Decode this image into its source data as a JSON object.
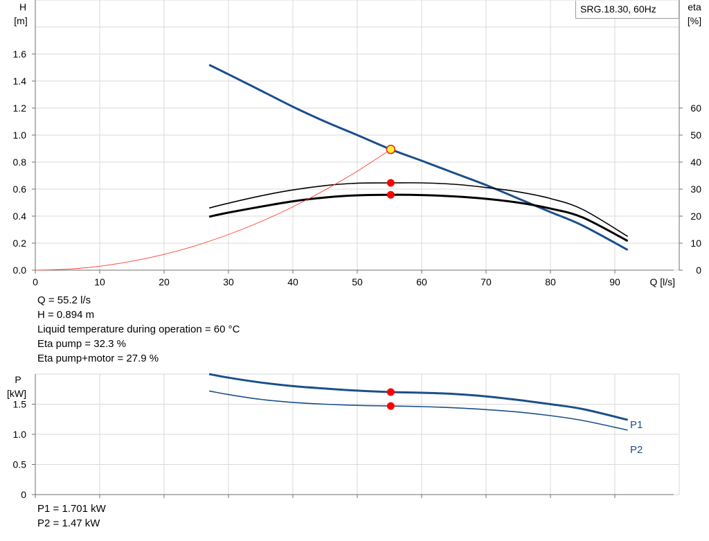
{
  "chart_data": [
    {
      "type": "line",
      "title": "SRG.18.30, 60Hz",
      "xlabel": "Q [l/s]",
      "ylabel_left": {
        "symbol": "H",
        "unit": "[m]"
      },
      "ylabel_right": {
        "symbol": "eta",
        "unit": "[%]"
      },
      "xlim": [
        0,
        100
      ],
      "ylim_left": [
        0,
        2.0
      ],
      "ylim_right": [
        0,
        100
      ],
      "x_ticks": [
        "0",
        "10",
        "20",
        "30",
        "40",
        "50",
        "60",
        "70",
        "80",
        "90"
      ],
      "y_ticks_left": [
        "0.0",
        "0.2",
        "0.4",
        "0.6",
        "0.8",
        "1.0",
        "1.2",
        "1.4",
        "1.6"
      ],
      "y_ticks_right": [
        "0",
        "10",
        "20",
        "30",
        "40",
        "50",
        "60"
      ],
      "grid": true,
      "series": [
        {
          "axis": "left",
          "color": "#1a4f8b",
          "x": [
            27,
            30,
            35,
            40,
            45,
            50,
            55.2,
            60,
            65,
            70,
            75,
            80,
            85,
            92
          ],
          "y": [
            1.52,
            1.45,
            1.33,
            1.21,
            1.1,
            1.0,
            0.894,
            0.81,
            0.72,
            0.63,
            0.53,
            0.43,
            0.33,
            0.15
          ]
        },
        {
          "axis": "right",
          "color": "#000000",
          "x": [
            27,
            30,
            35,
            40,
            45,
            50,
            55.2,
            60,
            65,
            70,
            75,
            80,
            85,
            92
          ],
          "y": [
            23.0,
            24.8,
            27.5,
            29.7,
            31.3,
            32.2,
            32.3,
            32.3,
            31.8,
            30.6,
            29.0,
            26.5,
            22.5,
            12.5
          ]
        },
        {
          "axis": "right",
          "color": "#000000",
          "x": [
            27,
            30,
            35,
            40,
            45,
            50,
            55.2,
            60,
            65,
            70,
            75,
            80,
            85,
            92
          ],
          "y": [
            19.8,
            21.3,
            23.5,
            25.5,
            26.9,
            27.7,
            27.9,
            27.8,
            27.3,
            26.4,
            25.0,
            22.8,
            19.5,
            10.8
          ]
        },
        {
          "axis": "left",
          "color": "#ff3b30",
          "x": [
            0,
            5,
            10,
            15,
            20,
            25,
            30,
            35,
            40,
            45,
            50,
            55.2
          ],
          "y": [
            0,
            0.0073,
            0.029,
            0.066,
            0.117,
            0.183,
            0.264,
            0.359,
            0.469,
            0.594,
            0.733,
            0.894
          ]
        }
      ],
      "operating_points": [
        {
          "x": 55.2,
          "axis": "left",
          "y": 0.894,
          "style": "yellow"
        },
        {
          "x": 55.2,
          "axis": "right",
          "y": 32.3,
          "style": "red"
        },
        {
          "x": 55.2,
          "axis": "right",
          "y": 27.9,
          "style": "red"
        }
      ]
    },
    {
      "type": "line",
      "ylabel": {
        "symbol": "P",
        "unit": "[kW]"
      },
      "xlim": [
        0,
        100
      ],
      "ylim": [
        0,
        2.0
      ],
      "y_ticks": [
        "0",
        "0.5",
        "1.0",
        "1.5"
      ],
      "grid": true,
      "series": [
        {
          "name": "P1",
          "color": "#1a4f8b",
          "x": [
            27,
            30,
            35,
            40,
            45,
            50,
            55.2,
            60,
            65,
            70,
            75,
            80,
            85,
            92
          ],
          "y": [
            2.0,
            1.94,
            1.86,
            1.8,
            1.76,
            1.725,
            1.701,
            1.69,
            1.67,
            1.63,
            1.57,
            1.5,
            1.42,
            1.24
          ]
        },
        {
          "name": "P2",
          "color": "#1a4f8b",
          "x": [
            27,
            30,
            35,
            40,
            45,
            50,
            55.2,
            60,
            65,
            70,
            75,
            80,
            85,
            92
          ],
          "y": [
            1.72,
            1.66,
            1.58,
            1.53,
            1.5,
            1.48,
            1.47,
            1.46,
            1.44,
            1.41,
            1.37,
            1.31,
            1.23,
            1.07
          ]
        }
      ],
      "operating_points": [
        {
          "x": 55.2,
          "y": 1.701,
          "style": "red"
        },
        {
          "x": 55.2,
          "y": 1.47,
          "style": "red"
        }
      ]
    }
  ],
  "info_top": [
    "Q = 55.2 l/s",
    "H = 0.894 m",
    "Liquid temperature during operation = 60 °C",
    "Eta pump = 32.3 %",
    "Eta pump+motor = 27.9 %"
  ],
  "info_bottom": [
    "P1 = 1.701 kW",
    "P2 = 1.47 kW"
  ]
}
